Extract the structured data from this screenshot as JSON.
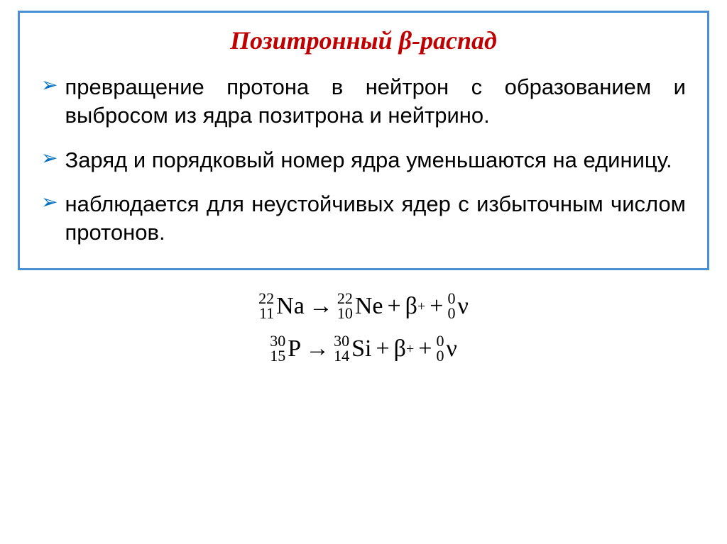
{
  "box": {
    "border_color": "#4a8fd4",
    "title": "Позитронный β-распад",
    "title_color": "#c00000",
    "title_fontsize": 36,
    "bullet_color": "#0070c0",
    "bullets": [
      "превращение протона в нейтрон с образованием и выбросом из ядра позитрона и нейтрино.",
      "Заряд и порядковый номер ядра уменьшаются на единицу.",
      "наблюдается для неустойчивых ядер с избыточным числом протонов."
    ]
  },
  "formulas": [
    {
      "lhs": {
        "A": "22",
        "Z": "11",
        "sym": "Na"
      },
      "rhs": [
        {
          "A": "22",
          "Z": "10",
          "sym": "Ne"
        },
        {
          "type": "beta_plus",
          "display": "β",
          "charge": "+"
        },
        {
          "A": "0",
          "Z": "0",
          "sym": "ν"
        }
      ]
    },
    {
      "lhs": {
        "A": "30",
        "Z": "15",
        "sym": "P"
      },
      "rhs": [
        {
          "A": "30",
          "Z": "14",
          "sym": "Si"
        },
        {
          "type": "beta_plus",
          "display": "β",
          "charge": "+"
        },
        {
          "A": "0",
          "Z": "0",
          "sym": "ν"
        }
      ]
    }
  ],
  "symbols": {
    "arrow": "→",
    "plus": "+"
  },
  "style": {
    "body_fontsize": 31,
    "formula_fontsize": 34,
    "supsub_fontsize": 22
  }
}
